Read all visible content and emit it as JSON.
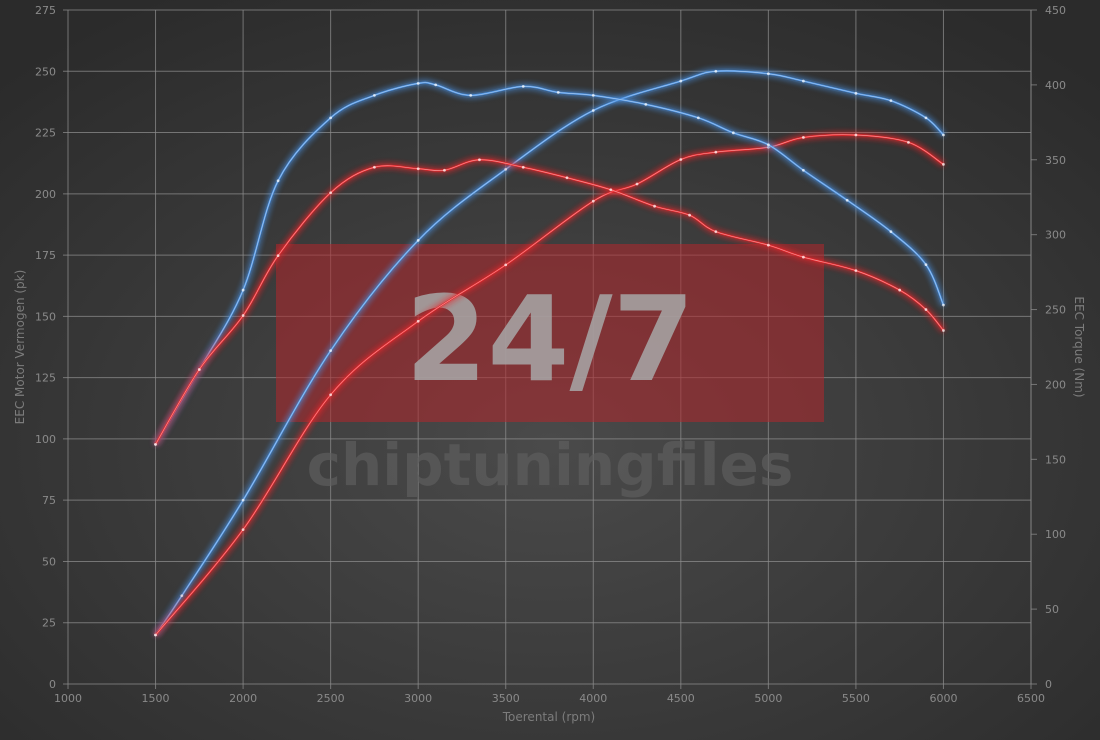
{
  "chart_data": {
    "type": "line",
    "xlabel": "Toerental (rpm)",
    "ylabel_left": "EEC Motor Vermogen (pk)",
    "ylabel_right": "EEC Torque (Nm)",
    "xlim": [
      1000,
      6500
    ],
    "ylim_left": [
      0,
      275
    ],
    "ylim_right": [
      0,
      450
    ],
    "x_ticks": [
      1000,
      1500,
      2000,
      2500,
      3000,
      3500,
      4000,
      4500,
      5000,
      5500,
      6000,
      6500
    ],
    "y_left_ticks": [
      0,
      25,
      50,
      75,
      100,
      125,
      150,
      175,
      200,
      225,
      250,
      275
    ],
    "y_right_ticks": [
      0,
      50,
      100,
      150,
      200,
      250,
      300,
      350,
      400,
      450
    ],
    "grid": true,
    "watermark": {
      "badge": "24/7",
      "text": "chiptuningfiles"
    },
    "series": [
      {
        "axis": "left",
        "color": "#4a90e0",
        "points": [
          [
            1500,
            20
          ],
          [
            1650,
            36
          ],
          [
            2000,
            75
          ],
          [
            2500,
            136
          ],
          [
            3000,
            181
          ],
          [
            3500,
            210
          ],
          [
            4000,
            234
          ],
          [
            4500,
            246
          ],
          [
            4700,
            250
          ],
          [
            5000,
            249
          ],
          [
            5200,
            246
          ],
          [
            5500,
            241
          ],
          [
            5700,
            238
          ],
          [
            5900,
            231
          ],
          [
            6000,
            224
          ]
        ]
      },
      {
        "axis": "left",
        "color": "#e8262a",
        "points": [
          [
            1500,
            20
          ],
          [
            2000,
            63
          ],
          [
            2500,
            118
          ],
          [
            3000,
            148
          ],
          [
            3500,
            171
          ],
          [
            4000,
            197
          ],
          [
            4250,
            204
          ],
          [
            4500,
            214
          ],
          [
            4700,
            217
          ],
          [
            5000,
            219
          ],
          [
            5200,
            223
          ],
          [
            5500,
            224
          ],
          [
            5800,
            221
          ],
          [
            6000,
            212
          ]
        ]
      },
      {
        "axis": "right",
        "color": "#4a90e0",
        "points": [
          [
            1500,
            160
          ],
          [
            1750,
            210
          ],
          [
            2000,
            263
          ],
          [
            2200,
            336
          ],
          [
            2500,
            378
          ],
          [
            2750,
            393
          ],
          [
            3000,
            401
          ],
          [
            3100,
            400
          ],
          [
            3300,
            393
          ],
          [
            3600,
            399
          ],
          [
            3800,
            395
          ],
          [
            4000,
            393
          ],
          [
            4300,
            387
          ],
          [
            4600,
            378
          ],
          [
            4800,
            368
          ],
          [
            5000,
            360
          ],
          [
            5200,
            343
          ],
          [
            5450,
            323
          ],
          [
            5700,
            302
          ],
          [
            5900,
            280
          ],
          [
            6000,
            253
          ]
        ]
      },
      {
        "axis": "right",
        "color": "#e8262a",
        "points": [
          [
            1500,
            160
          ],
          [
            1750,
            210
          ],
          [
            2000,
            246
          ],
          [
            2200,
            286
          ],
          [
            2500,
            328
          ],
          [
            2750,
            345
          ],
          [
            3000,
            344
          ],
          [
            3150,
            343
          ],
          [
            3350,
            350
          ],
          [
            3600,
            345
          ],
          [
            3850,
            338
          ],
          [
            4100,
            330
          ],
          [
            4350,
            319
          ],
          [
            4550,
            313
          ],
          [
            4700,
            302
          ],
          [
            5000,
            293
          ],
          [
            5200,
            285
          ],
          [
            5500,
            276
          ],
          [
            5750,
            263
          ],
          [
            5900,
            250
          ],
          [
            6000,
            236
          ]
        ]
      }
    ]
  }
}
